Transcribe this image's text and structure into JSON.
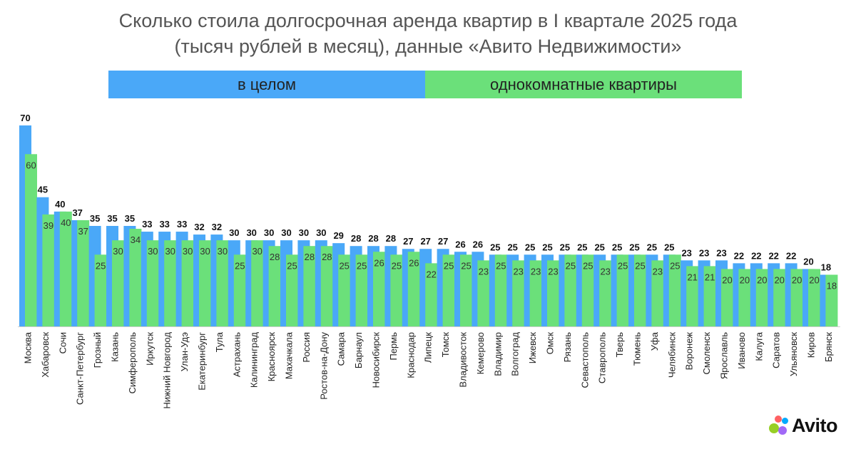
{
  "chart_data": {
    "type": "bar",
    "title": "Сколько стоила долгосрочная аренда квартир в I квартале 2025 года",
    "subtitle": "(тысяч рублей в месяц), данные «Авито Недвижимости»",
    "xlabel": "",
    "ylabel": "",
    "ylim": [
      0,
      70
    ],
    "legend_position": "top",
    "categories": [
      "Москва",
      "Хабаровск",
      "Сочи",
      "Санкт-Петербург",
      "Грозный",
      "Казань",
      "Симферополь",
      "Иркутск",
      "Нижний Новгород",
      "Улан-Удэ",
      "Екатеринбург",
      "Тула",
      "Астрахань",
      "Калининград",
      "Красноярск",
      "Махачкала",
      "Россия",
      "Ростов-на-Дону",
      "Самара",
      "Барнаул",
      "Новосибирск",
      "Пермь",
      "Краснодар",
      "Липецк",
      "Томск",
      "Владивосток",
      "Кемерово",
      "Владимир",
      "Волгоград",
      "Ижевск",
      "Омск",
      "Рязань",
      "Севастополь",
      "Ставрополь",
      "Тверь",
      "Тюмень",
      "Уфа",
      "Челябинск",
      "Воронеж",
      "Смоленск",
      "Ярославль",
      "Иваново",
      "Калуга",
      "Саратов",
      "Ульяновск",
      "Киров",
      "Брянск"
    ],
    "series": [
      {
        "name": "в целом",
        "color": "#4aa8f8",
        "values": [
          70,
          45,
          40,
          37,
          35,
          35,
          35,
          33,
          33,
          33,
          32,
          32,
          30,
          30,
          30,
          30,
          30,
          30,
          29,
          28,
          28,
          28,
          27,
          27,
          27,
          26,
          26,
          25,
          25,
          25,
          25,
          25,
          25,
          25,
          25,
          25,
          25,
          25,
          23,
          23,
          23,
          22,
          22,
          22,
          22,
          20,
          18
        ]
      },
      {
        "name": "однокомнатные квартиры",
        "color": "#6be07a",
        "values": [
          60,
          39,
          40,
          37,
          25,
          30,
          34,
          30,
          30,
          30,
          30,
          30,
          25,
          30,
          28,
          25,
          28,
          28,
          25,
          25,
          26,
          25,
          26,
          22,
          25,
          25,
          23,
          25,
          23,
          23,
          23,
          25,
          25,
          23,
          25,
          25,
          23,
          25,
          21,
          21,
          20,
          20,
          20,
          20,
          20,
          20,
          18
        ]
      }
    ]
  },
  "brand": {
    "name": "Avito"
  }
}
